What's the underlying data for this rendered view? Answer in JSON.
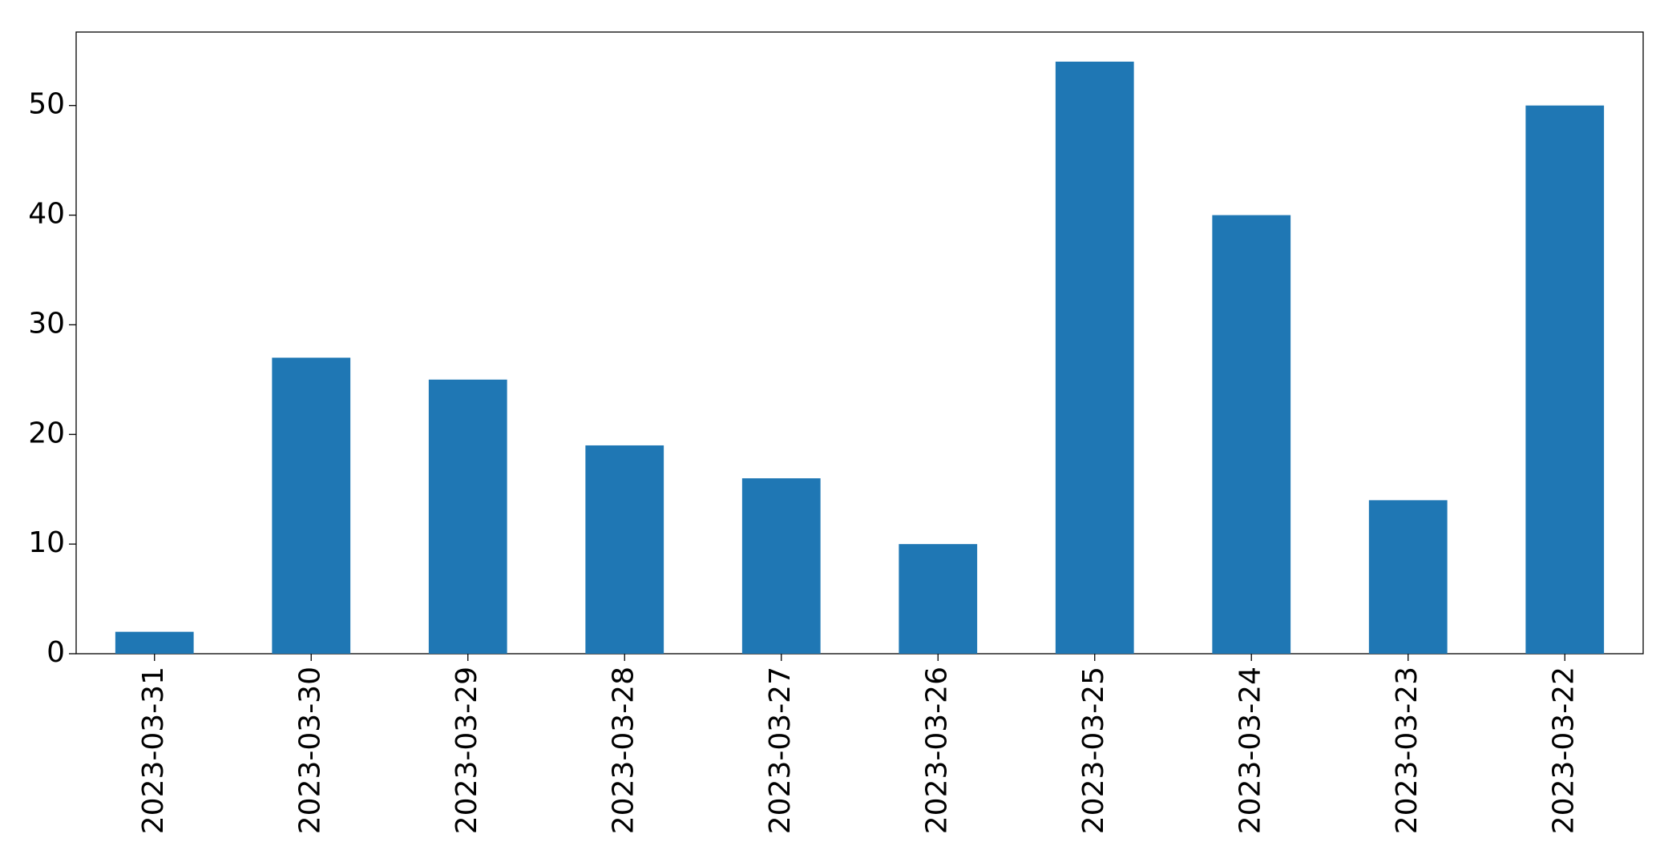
{
  "chart_data": {
    "type": "bar",
    "categories": [
      "2023-03-31",
      "2023-03-30",
      "2023-03-29",
      "2023-03-28",
      "2023-03-27",
      "2023-03-26",
      "2023-03-25",
      "2023-03-24",
      "2023-03-23",
      "2023-03-22"
    ],
    "values": [
      2,
      27,
      25,
      19,
      16,
      10,
      54,
      40,
      14,
      50
    ],
    "color": "#1f77b4",
    "ylim": [
      0,
      56.7
    ],
    "yticks": [
      0,
      10,
      20,
      30,
      40,
      50
    ],
    "grid": false
  }
}
